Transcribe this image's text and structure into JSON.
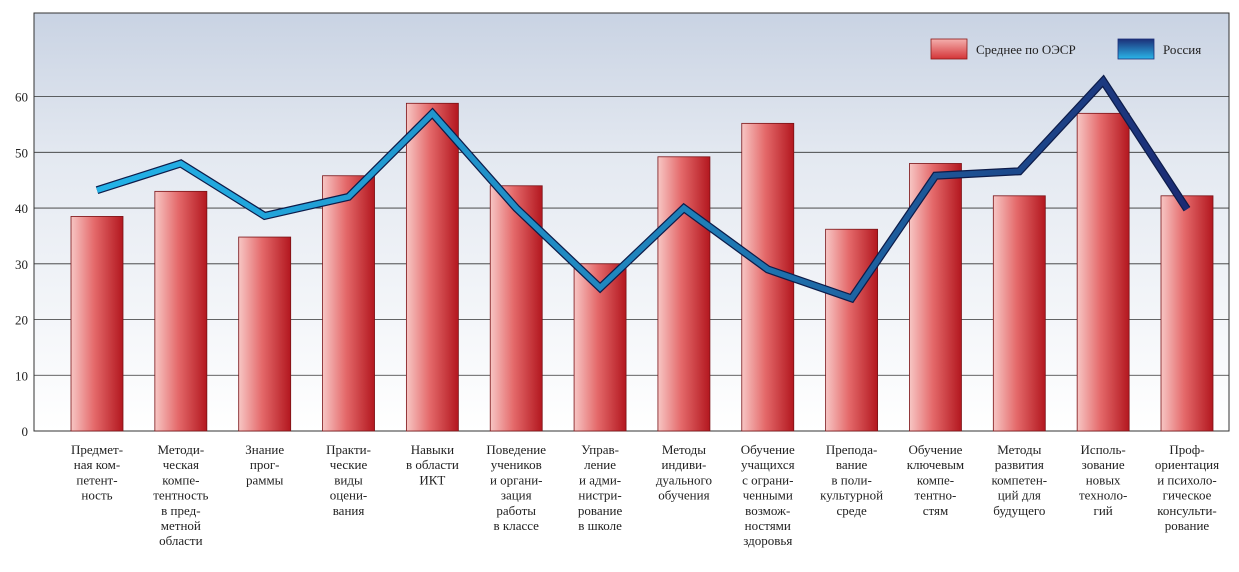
{
  "chart_data": {
    "type": "bar",
    "title": "",
    "xlabel": "",
    "ylabel": "",
    "ylim": [
      0,
      75
    ],
    "yticks": [
      0,
      10,
      20,
      30,
      40,
      50,
      60
    ],
    "grid": true,
    "legend_position": "top-right",
    "categories": [
      [
        "Предмет-",
        "ная ком-",
        "петент-",
        "ность"
      ],
      [
        "Методи-",
        "ческая",
        "компе-",
        "тентность",
        "в пред-",
        "метной",
        "области"
      ],
      [
        "Знание",
        "прог-",
        "раммы"
      ],
      [
        "Практи-",
        "ческие",
        "виды",
        "оцени-",
        "вания"
      ],
      [
        "Навыки",
        "в области",
        "ИКТ"
      ],
      [
        "Поведение",
        "учеников",
        "и органи-",
        "зация",
        "работы",
        "в классе"
      ],
      [
        "Управ-",
        "ление",
        "и адми-",
        "нистри-",
        "рование",
        "в школе"
      ],
      [
        "Методы",
        "индиви-",
        "дуального",
        "обучения"
      ],
      [
        "Обучение",
        "учащихся",
        "с ограни-",
        "ченными",
        "возмож-",
        "ностями",
        "здоровья"
      ],
      [
        "Препода-",
        "вание",
        "в поли-",
        "культурной",
        "среде"
      ],
      [
        "Обучение",
        "ключевым",
        "компе-",
        "тентно-",
        "стям"
      ],
      [
        "Методы",
        "развития",
        "компетен-",
        "ций для",
        "будущего"
      ],
      [
        "Исполь-",
        "зование",
        "новых",
        "техноло-",
        "гий"
      ],
      [
        "Проф-",
        "ориентация",
        "и психоло-",
        "гическое",
        "консульти-",
        "рование"
      ]
    ],
    "series": [
      {
        "name": "Среднее по ОЭСР",
        "type": "bar",
        "color": "#d9383a",
        "values": [
          38.5,
          43,
          34.8,
          45.8,
          58.8,
          44,
          30,
          49.2,
          55.2,
          36.2,
          48,
          42.2,
          57,
          42.2
        ]
      },
      {
        "name": "Россия",
        "type": "line",
        "color": "#1e9fd8",
        "color_end": "#1c2f78",
        "values": [
          43.2,
          48,
          38.6,
          42,
          57,
          40,
          25.7,
          40,
          29,
          23.8,
          45.8,
          46.6,
          62.8,
          39.8
        ]
      }
    ]
  }
}
